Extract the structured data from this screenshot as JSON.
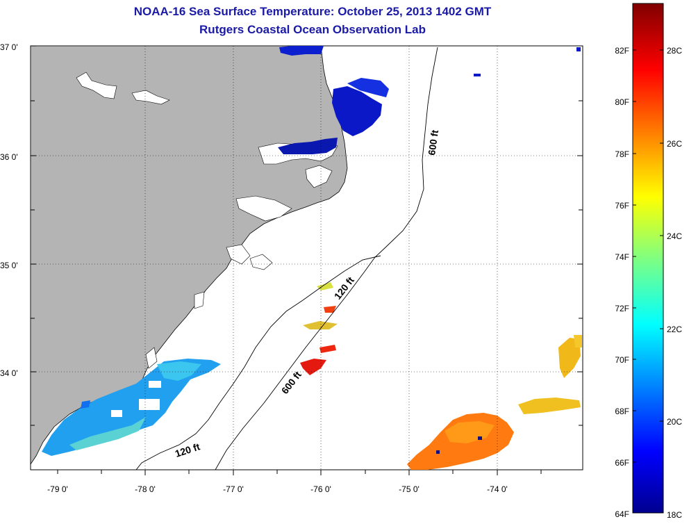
{
  "header": {
    "title": "NOAA-16 Sea Surface Temperature:  October 25, 2013 1402 GMT",
    "subtitle": "Rutgers Coastal Ocean Observation Lab"
  },
  "map": {
    "lat_ticks": [
      {
        "value": 37.0,
        "label": "37 0'"
      },
      {
        "value": 36.0,
        "label": "36 0'"
      },
      {
        "value": 35.0,
        "label": "35 0'"
      },
      {
        "value": 34.0,
        "label": "34 0'"
      }
    ],
    "lon_ticks": [
      {
        "value": -79.0,
        "label": "-79 0'"
      },
      {
        "value": -78.0,
        "label": "-78 0'"
      },
      {
        "value": -77.0,
        "label": "-77 0'"
      },
      {
        "value": -76.0,
        "label": "-76 0'"
      },
      {
        "value": -75.0,
        "label": "-75 0'"
      },
      {
        "value": -74.0,
        "label": "-74 0'"
      }
    ],
    "contour_labels": [
      {
        "id": "c600a",
        "text": "600 ft"
      },
      {
        "id": "c120a",
        "text": "120 ft"
      },
      {
        "id": "c600b",
        "text": "600 ft"
      },
      {
        "id": "c120b",
        "text": "120 ft"
      }
    ],
    "colors": {
      "land": "#b4b4b4",
      "ocean": "#ffffff",
      "title": "#1a1aa6"
    }
  },
  "colorbar": {
    "fahrenheit_labels": [
      "82F",
      "80F",
      "78F",
      "76F",
      "74F",
      "72F",
      "70F",
      "68F",
      "66F",
      "64F"
    ],
    "celsius_labels": [
      "28C",
      "26C",
      "24C",
      "22C",
      "20C",
      "18C"
    ],
    "range_c": [
      18,
      29.5
    ],
    "colormap": "jet"
  }
}
